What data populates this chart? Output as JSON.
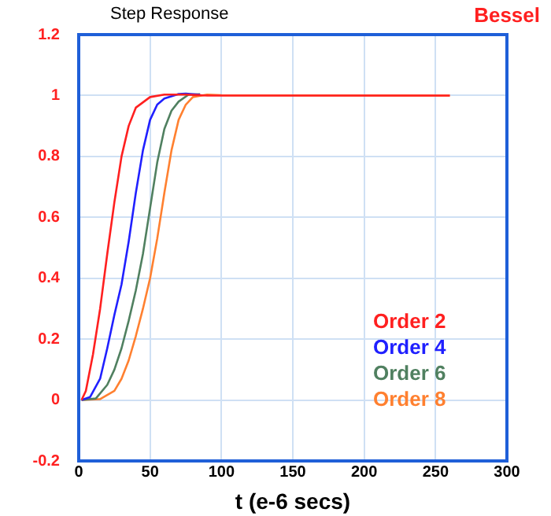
{
  "chart_data": {
    "type": "line",
    "title": "Step Response",
    "subtitle": "Bessel",
    "xlabel": "t (e-6 secs)",
    "xlim": [
      0,
      300
    ],
    "xticks": [
      0,
      50,
      100,
      150,
      200,
      250,
      300
    ],
    "ylim": [
      -0.2,
      1.2
    ],
    "yticks": [
      -0.2,
      0,
      0.2,
      0.4,
      0.6,
      0.8,
      1,
      1.2
    ],
    "grid": true,
    "legend": "bottom right",
    "marker": "none",
    "line_style": "solid",
    "series": [
      {
        "name": "Order 2",
        "color": "#ff2020",
        "x": [
          2,
          5,
          10,
          15,
          20,
          25,
          30,
          35,
          40,
          50,
          60,
          75,
          90,
          260
        ],
        "values": [
          0,
          0.03,
          0.15,
          0.3,
          0.48,
          0.65,
          0.8,
          0.9,
          0.96,
          0.995,
          1.003,
          1.003,
          1,
          1
        ]
      },
      {
        "name": "Order 4",
        "color": "#2020ff",
        "x": [
          2,
          8,
          15,
          20,
          25,
          30,
          35,
          40,
          45,
          50,
          55,
          60,
          70,
          75,
          85
        ],
        "values": [
          0,
          0.01,
          0.07,
          0.17,
          0.28,
          0.38,
          0.52,
          0.68,
          0.82,
          0.92,
          0.97,
          0.99,
          1.005,
          1.006,
          1.002
        ]
      },
      {
        "name": "Order 6",
        "color": "#508060",
        "x": [
          2,
          12,
          20,
          25,
          30,
          35,
          40,
          45,
          50,
          55,
          60,
          65,
          70,
          77,
          85
        ],
        "values": [
          0,
          0.005,
          0.05,
          0.1,
          0.17,
          0.26,
          0.36,
          0.48,
          0.63,
          0.78,
          0.89,
          0.95,
          0.98,
          1.003,
          1.004
        ]
      },
      {
        "name": "Order 8",
        "color": "#ff8030",
        "x": [
          2,
          15,
          25,
          30,
          35,
          40,
          45,
          50,
          55,
          60,
          65,
          70,
          75,
          80,
          90,
          100,
          260
        ],
        "values": [
          0,
          0.003,
          0.03,
          0.07,
          0.13,
          0.21,
          0.3,
          0.4,
          0.53,
          0.68,
          0.82,
          0.92,
          0.97,
          0.995,
          1.003,
          1.001,
          1
        ]
      }
    ]
  }
}
